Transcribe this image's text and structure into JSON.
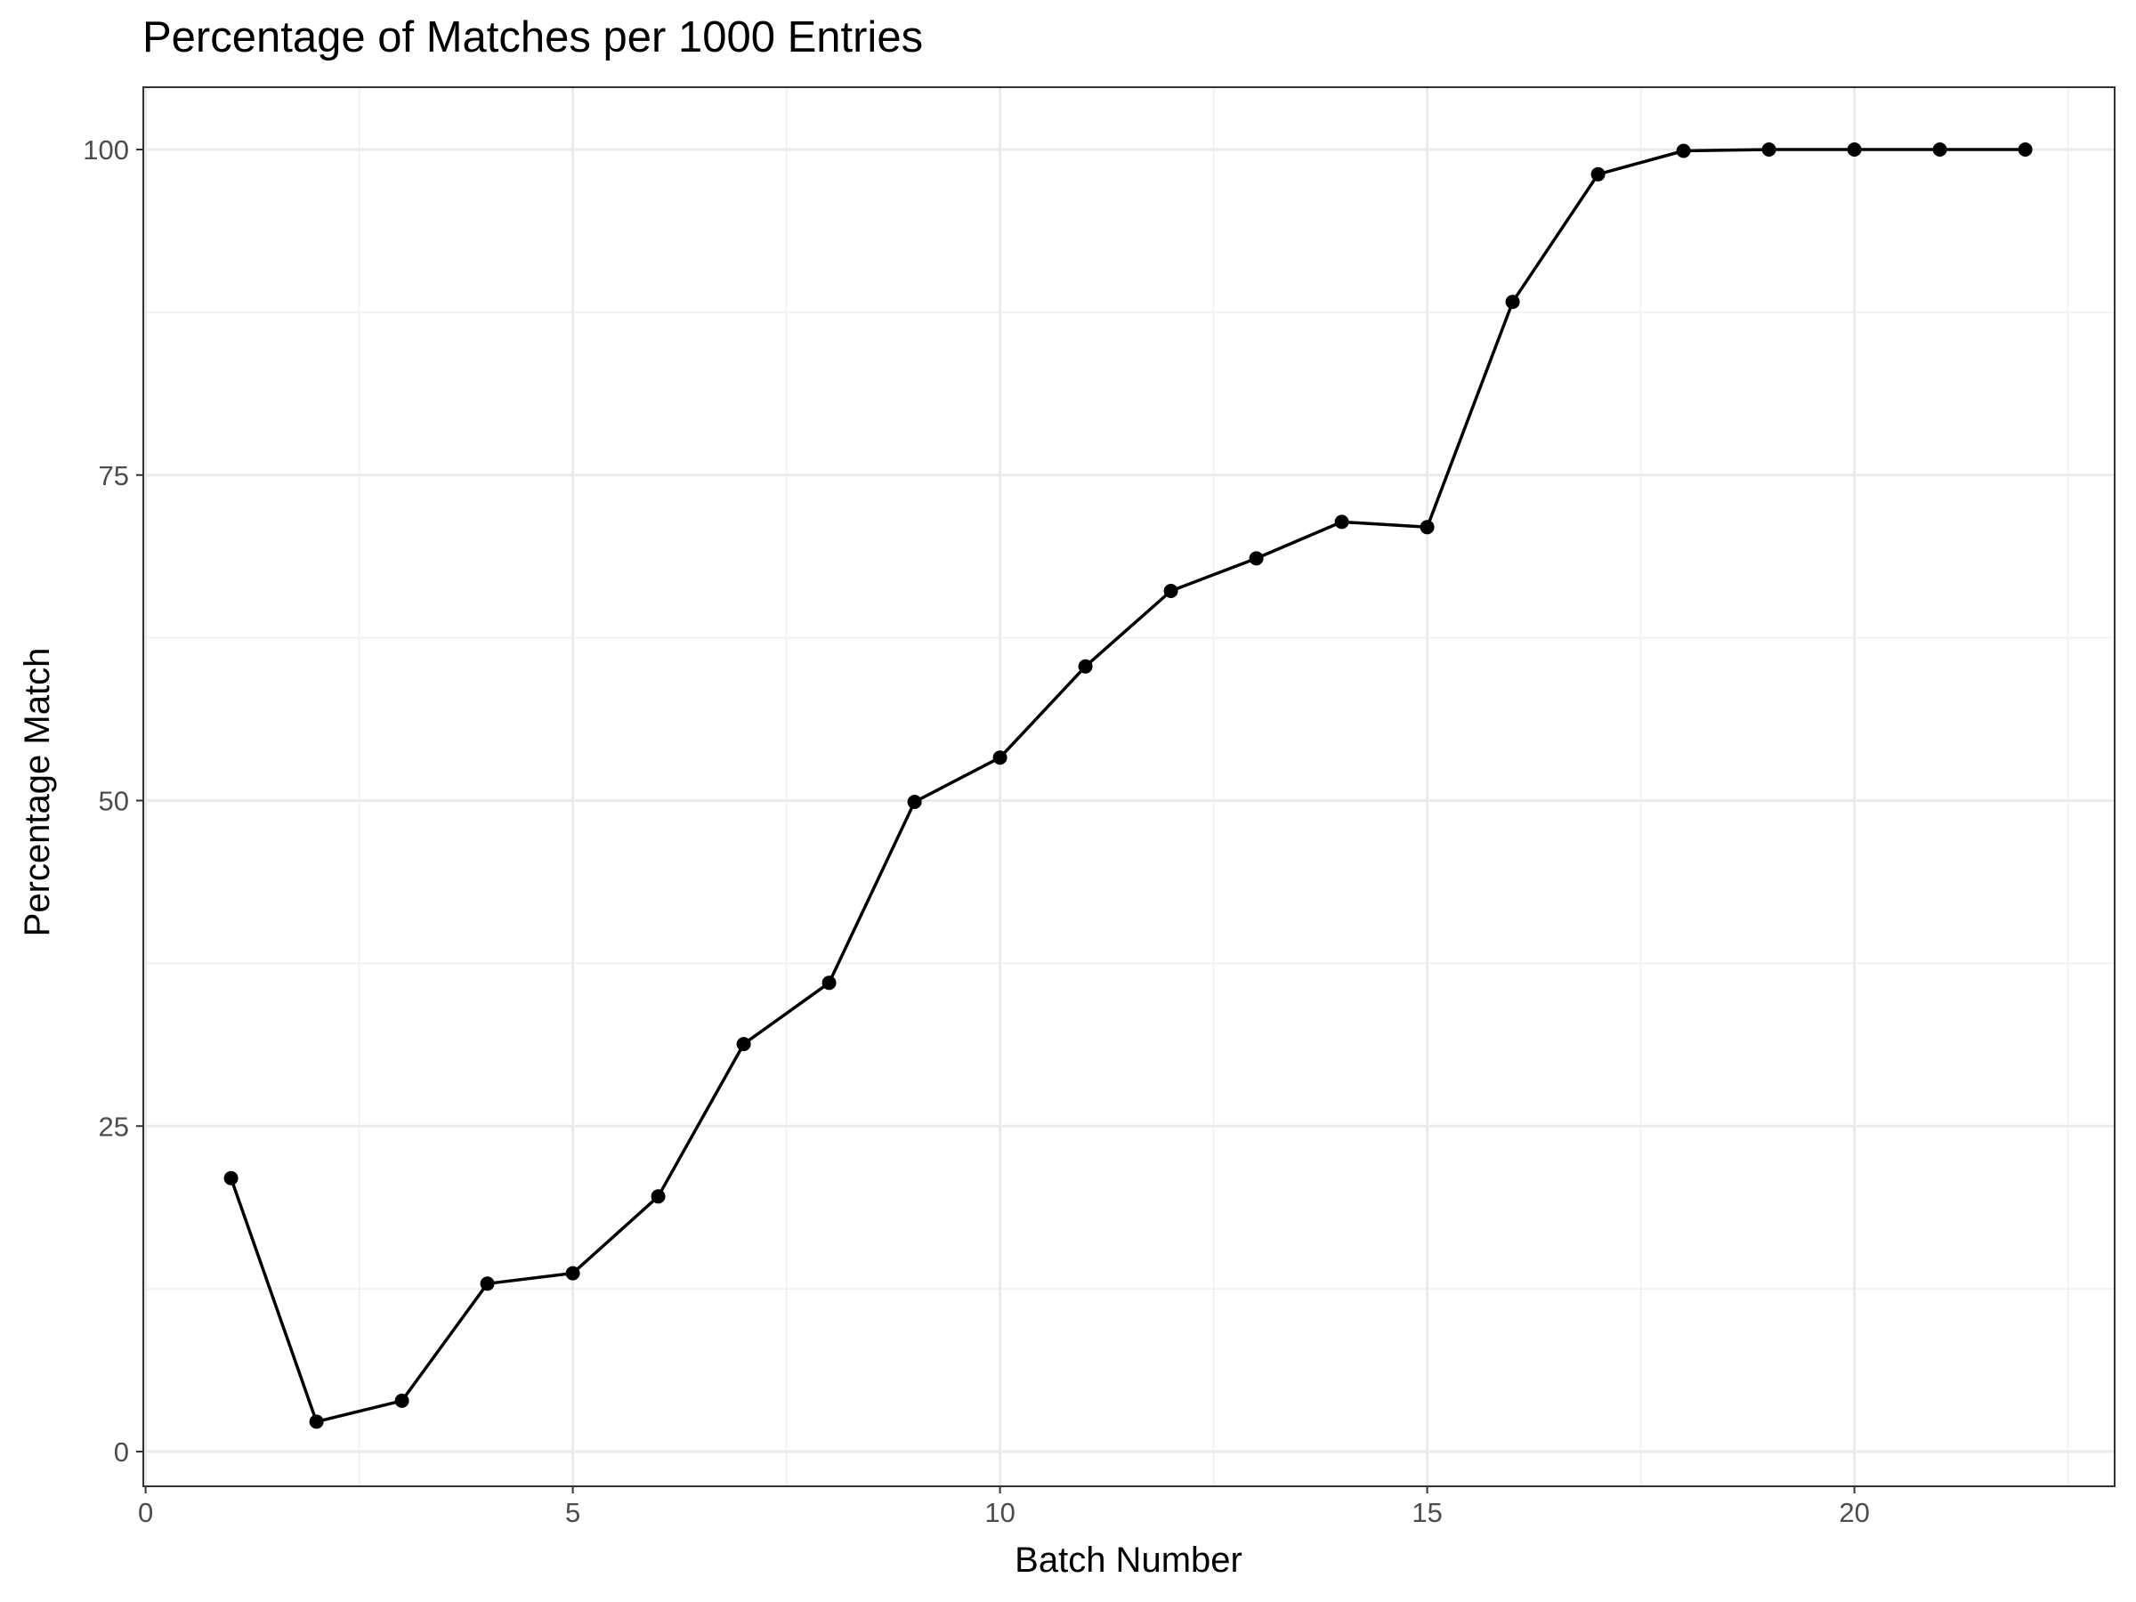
{
  "chart_data": {
    "type": "line",
    "title": "Percentage of Matches per 1000 Entries",
    "xlabel": "Batch Number",
    "ylabel": "Percentage Match",
    "xlim": [
      0,
      23
    ],
    "ylim": [
      0,
      100
    ],
    "x_ticks": [
      0,
      5,
      10,
      15,
      20
    ],
    "y_ticks": [
      0,
      25,
      50,
      75,
      100
    ],
    "grid": true,
    "legend": "none",
    "line_color": "#000000",
    "x": [
      1,
      2,
      3,
      4,
      5,
      6,
      7,
      8,
      9,
      10,
      11,
      12,
      13,
      14,
      15,
      16,
      17,
      18,
      19,
      20,
      21,
      22
    ],
    "y": [
      21.0,
      2.3,
      3.9,
      12.9,
      13.7,
      19.6,
      31.3,
      36.0,
      49.9,
      53.3,
      60.3,
      66.1,
      68.6,
      71.4,
      71.0,
      88.3,
      98.1,
      99.9,
      100.0,
      100.0,
      100.0,
      100.0
    ]
  }
}
